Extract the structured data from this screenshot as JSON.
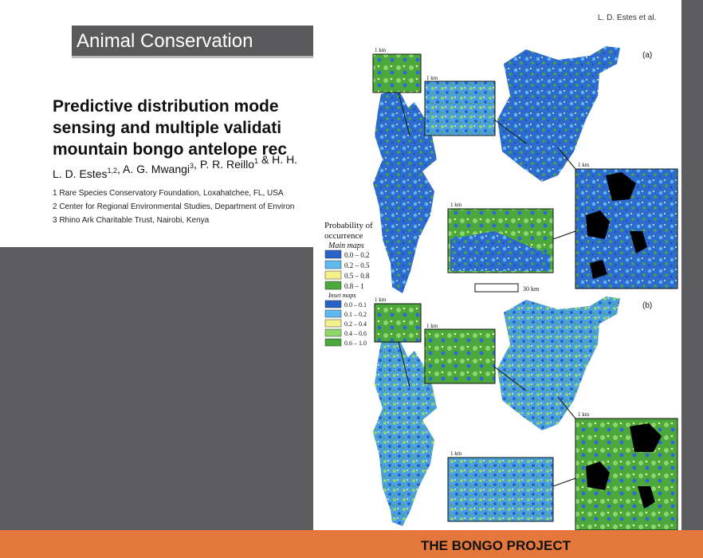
{
  "slide": {
    "footer": "THE BONGO PROJECT"
  },
  "front_page": {
    "journal": "Animal Conservation",
    "title_lines": [
      "Predictive distribution mode",
      "sensing and multiple validati",
      "mountain bongo antelope rec"
    ],
    "authors": [
      {
        "name": "L. D. Estes",
        "sup": "1,2"
      },
      {
        "name": ", A. G. Mwangi",
        "sup": "3"
      },
      {
        "name": ", P. R. Reillo",
        "sup": "1"
      },
      {
        "name": " & H. H.",
        "sup": ""
      }
    ],
    "affiliations": [
      "1 Rare Species Conservatory Foundation, Loxahatchee, FL, USA",
      "2 Center for Regional Environmental Studies, Department of Environ",
      "3 Rhino Ark Charitable Trust, Nairobi, Kenya"
    ]
  },
  "figure_page": {
    "running_head": "L. D. Estes et al.",
    "panels": [
      "(a)",
      "(b)"
    ],
    "inset_scale": "1 km",
    "main_scale": "30 km",
    "legend": {
      "title_lines": [
        "Probability of",
        "occurrence"
      ],
      "main_heading": "Main maps",
      "main_items": [
        {
          "label": "0.0 – 0.2",
          "color": "#2a63c8"
        },
        {
          "label": "0.2 – 0.5",
          "color": "#5db9ee"
        },
        {
          "label": "0.5 – 0.8",
          "color": "#f4f08a"
        },
        {
          "label": "0.8 – 1",
          "color": "#4aa83c"
        }
      ],
      "inset_heading": "Inset maps",
      "inset_items": [
        {
          "label": "0.0 – 0.1",
          "color": "#2a63c8"
        },
        {
          "label": "0.1 – 0.2",
          "color": "#5db9ee"
        },
        {
          "label": "0.2 – 0.4",
          "color": "#f4f08a"
        },
        {
          "label": "0.4 – 0.6",
          "color": "#8fd66a"
        },
        {
          "label": "0.6 – 1.0",
          "color": "#4aa83c"
        }
      ]
    }
  }
}
